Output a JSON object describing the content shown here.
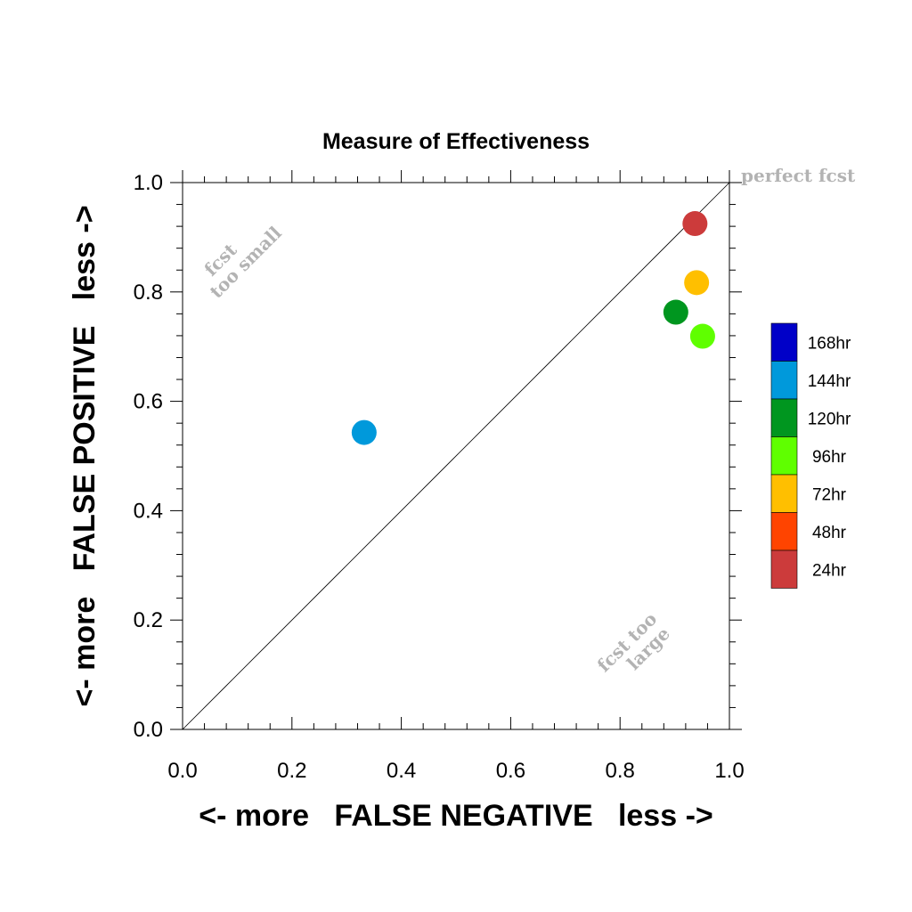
{
  "chart_data": {
    "type": "scatter",
    "title": "Measure of Effectiveness",
    "xlabel": "<- more   FALSE NEGATIVE   less ->",
    "ylabel": "<- more   FALSE POSITIVE   less ->",
    "xlim": [
      0.0,
      1.0
    ],
    "ylim": [
      0.0,
      1.0
    ],
    "xticks": [
      "0.0",
      "0.2",
      "0.4",
      "0.6",
      "0.8",
      "1.0"
    ],
    "yticks": [
      "0.0",
      "0.2",
      "0.4",
      "0.6",
      "0.8",
      "1.0"
    ],
    "grid": false,
    "reference_line": "y = x",
    "points": [
      {
        "label": "24hr",
        "x": 0.937,
        "y": 0.925,
        "color": "#cc3b3b"
      },
      {
        "label": "72hr",
        "x": 0.94,
        "y": 0.817,
        "color": "#ffbf00"
      },
      {
        "label": "120hr",
        "x": 0.902,
        "y": 0.763,
        "color": "#00961f"
      },
      {
        "label": "96hr",
        "x": 0.951,
        "y": 0.719,
        "color": "#5fff00"
      },
      {
        "label": "144hr",
        "x": 0.332,
        "y": 0.543,
        "color": "#0099db"
      }
    ],
    "legend": {
      "placement": "right",
      "entries": [
        {
          "label": "168hr",
          "color": "#0000c8"
        },
        {
          "label": "144hr",
          "color": "#0099db"
        },
        {
          "label": "120hr",
          "color": "#00961f"
        },
        {
          "label": "96hr",
          "color": "#5fff00"
        },
        {
          "label": "72hr",
          "color": "#ffbf00"
        },
        {
          "label": "48hr",
          "color": "#ff4400"
        },
        {
          "label": "24hr",
          "color": "#cc3b3b"
        }
      ]
    },
    "annotations": {
      "perfect": "perfect fcst",
      "small_line1": "fcst",
      "small_line2": "too small",
      "large_line1": "fcst too",
      "large_line2": "large"
    }
  }
}
